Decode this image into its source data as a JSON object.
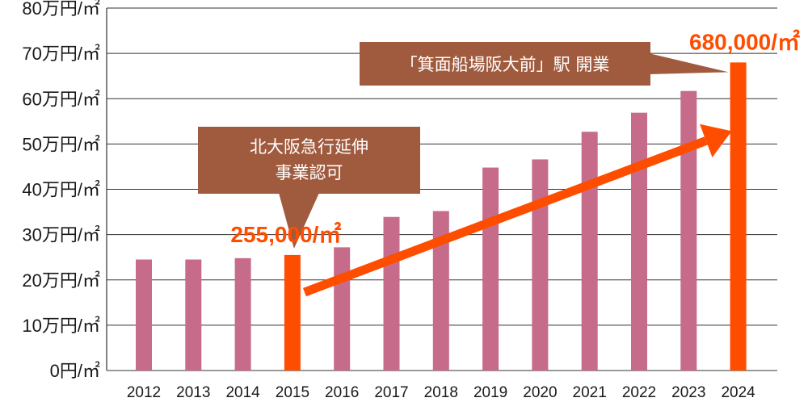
{
  "chart_data": {
    "type": "bar",
    "title": "",
    "xlabel": "",
    "ylabel": "",
    "categories": [
      "2012",
      "2013",
      "2014",
      "2015",
      "2016",
      "2017",
      "2018",
      "2019",
      "2020",
      "2021",
      "2022",
      "2023",
      "2024"
    ],
    "values": [
      245000,
      245000,
      248000,
      255000,
      272000,
      339000,
      352000,
      448000,
      466000,
      527000,
      569000,
      617000,
      680000
    ],
    "ylim": [
      0,
      800000
    ],
    "yticks": [
      {
        "value": 0,
        "label": "0円/㎡"
      },
      {
        "value": 100000,
        "label": "10万円/㎡"
      },
      {
        "value": 200000,
        "label": "20万円/㎡"
      },
      {
        "value": 300000,
        "label": "30万円/㎡"
      },
      {
        "value": 400000,
        "label": "40万円/㎡"
      },
      {
        "value": 500000,
        "label": "50万円/㎡"
      },
      {
        "value": 600000,
        "label": "60万円/㎡"
      },
      {
        "value": 700000,
        "label": "70万円/㎡"
      },
      {
        "value": 800000,
        "label": "80万円/㎡"
      }
    ],
    "grid": true,
    "highlight_categories": [
      "2015",
      "2024"
    ],
    "colors": {
      "bar": "#c76b8a",
      "highlight": "#ff4d00",
      "arrow": "#ff4d00",
      "callout": "#a05b3e",
      "grid": "#333333"
    },
    "data_labels": [
      {
        "category": "2015",
        "text": "255,000/㎡"
      },
      {
        "category": "2024",
        "text": "680,000/㎡"
      }
    ],
    "annotations": [
      {
        "category": "2015",
        "lines": [
          "北大阪急行延伸",
          "事業認可"
        ]
      },
      {
        "category": "2024",
        "lines": [
          "「箕面船場阪大前」駅 開業"
        ]
      }
    ],
    "trend_arrow": {
      "from": "2015",
      "to": "2024"
    }
  }
}
